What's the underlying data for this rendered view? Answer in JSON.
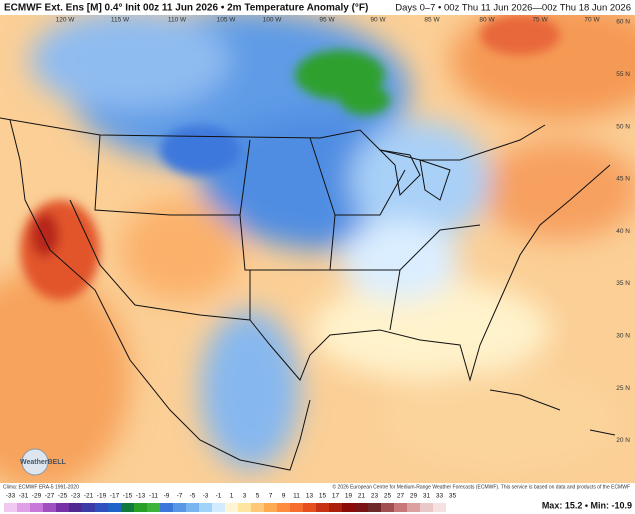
{
  "header": {
    "title": "ECMWF Ext. Ens [M] 0.4° Init 00z 11 Jun 2026 • 2m Temperature Anomaly (°F)",
    "period": "Days 0–7 • 00z Thu 11 Jun 2026—00z Thu 18 Jun 2026"
  },
  "map": {
    "longitudes": [
      "120 W",
      "115 W",
      "110 W",
      "105 W",
      "100 W",
      "95 W",
      "90 W",
      "85 W",
      "80 W",
      "75 W",
      "70 W"
    ],
    "latitudes": [
      "60 N",
      "55 N",
      "50 N",
      "45 N",
      "40 N",
      "35 N",
      "30 N",
      "25 N",
      "20 N"
    ],
    "logo": "WeatherBELL"
  },
  "footer": {
    "climo": "Clima: ECMWF ERA-5 1991-2020",
    "copyright": "© 2026 European Centre for Medium-Range Weather Forecasts (ECMWF). This service is based on data and products of the ECMWF",
    "stats": "Max: 15.2 • Min: -10.9"
  },
  "colorbar": {
    "ticks": [
      -33,
      -31,
      -29,
      -27,
      -25,
      -23,
      -21,
      -19,
      -17,
      -15,
      -13,
      -11,
      -9,
      -7,
      -5,
      -3,
      -1,
      1,
      3,
      5,
      7,
      9,
      11,
      13,
      15,
      17,
      19,
      21,
      23,
      25,
      27,
      29,
      31,
      33,
      35
    ],
    "colors": [
      "#f0c8f0",
      "#e0a0e8",
      "#c878d8",
      "#a050c0",
      "#7830a8",
      "#502890",
      "#3c3ca8",
      "#3050c0",
      "#1e64c8",
      "#0f7a3a",
      "#28a028",
      "#3cb43c",
      "#3c78dc",
      "#5a96e6",
      "#78b4f0",
      "#a0d2fa",
      "#d2ebff",
      "#fff5d2",
      "#ffe6a0",
      "#ffc878",
      "#ffaa50",
      "#ff8c3c",
      "#f56e2d",
      "#e6501e",
      "#c83214",
      "#aa1e0a",
      "#8c0a0a",
      "#781414",
      "#6e2828",
      "#a05050",
      "#c87878",
      "#dca0a0",
      "#ebc8c8",
      "#f5e1e1",
      "#ffffff"
    ]
  }
}
